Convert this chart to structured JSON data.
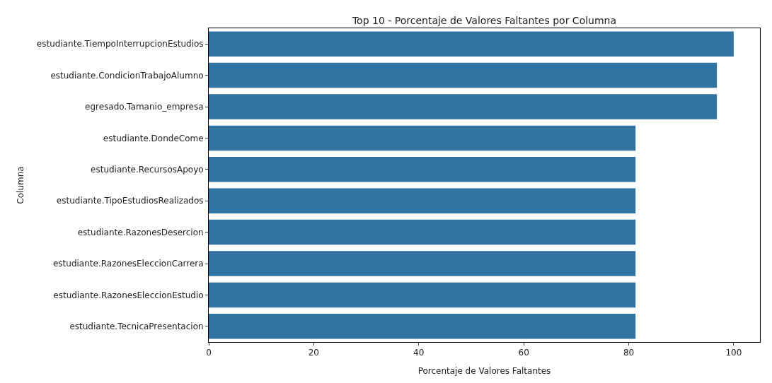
{
  "chart_data": {
    "type": "bar",
    "orientation": "horizontal",
    "title": "Top 10 - Porcentaje de Valores Faltantes por Columna",
    "xlabel": "Porcentaje de Valores Faltantes",
    "ylabel": "Columna",
    "categories": [
      "estudiante.TiempoInterrupcionEstudios",
      "estudiante.CondicionTrabajoAlumno",
      "egresado.Tamanio_empresa",
      "estudiante.DondeCome",
      "estudiante.RecursosApoyo",
      "estudiante.TipoEstudiosRealizados",
      "estudiante.RazonesDesercion",
      "estudiante.RazonesEleccionCarrera",
      "estudiante.RazonesEleccionEstudio",
      "estudiante.TecnicaPresentacion"
    ],
    "values": [
      100,
      96.8,
      96.8,
      81.3,
      81.3,
      81.3,
      81.3,
      81.3,
      81.3,
      81.3
    ],
    "color": "#3274a1",
    "xlim": [
      0,
      105
    ],
    "xticks": [
      0,
      20,
      40,
      60,
      80,
      100
    ]
  }
}
